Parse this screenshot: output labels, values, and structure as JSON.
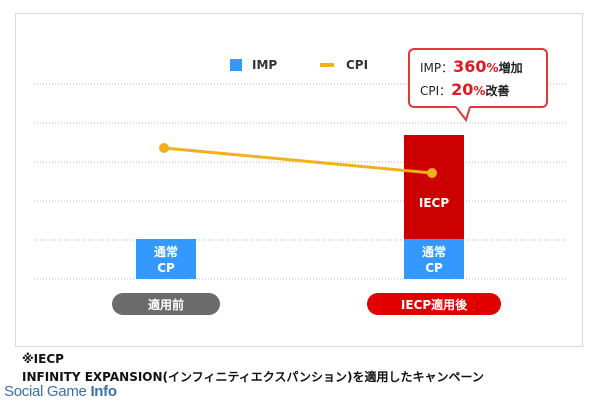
{
  "chart_data": {
    "type": "bar+line",
    "categories": [
      "適用前",
      "IECP適用後"
    ],
    "legend": [
      {
        "label": "IMP",
        "color": "#3399ff",
        "kind": "bar"
      },
      {
        "label": "CPI",
        "color": "#f2b01e",
        "kind": "line"
      }
    ],
    "imp_series": [
      {
        "name": "通常CP",
        "values": [
          1,
          1
        ],
        "color": "#3399ff"
      },
      {
        "name": "IECP",
        "values": [
          0,
          2.6
        ],
        "color": "#cc0000"
      }
    ],
    "cpi_series": {
      "values": [
        1.0,
        0.8
      ],
      "color": "#f2b01e"
    },
    "segment_labels": {
      "normal": [
        "通常",
        "CP"
      ],
      "iecp": "IECP"
    },
    "gridlines": 6,
    "category_pill_colors": [
      "#6b6b6b",
      "#e00000"
    ]
  },
  "callout": {
    "imp_label": "IMP：",
    "imp_value": "360",
    "imp_unit": "%",
    "imp_change": "増加",
    "cpi_label": "CPI：",
    "cpi_value": "20",
    "cpi_unit": "%",
    "cpi_change": "改善"
  },
  "footnote": {
    "line1": "※IECP",
    "line2": "INFINITY EXPANSION(インフィニティエクスパンション)を適用したキャンペーン"
  },
  "watermark": {
    "part1": "Social Game ",
    "part2": "Info"
  }
}
